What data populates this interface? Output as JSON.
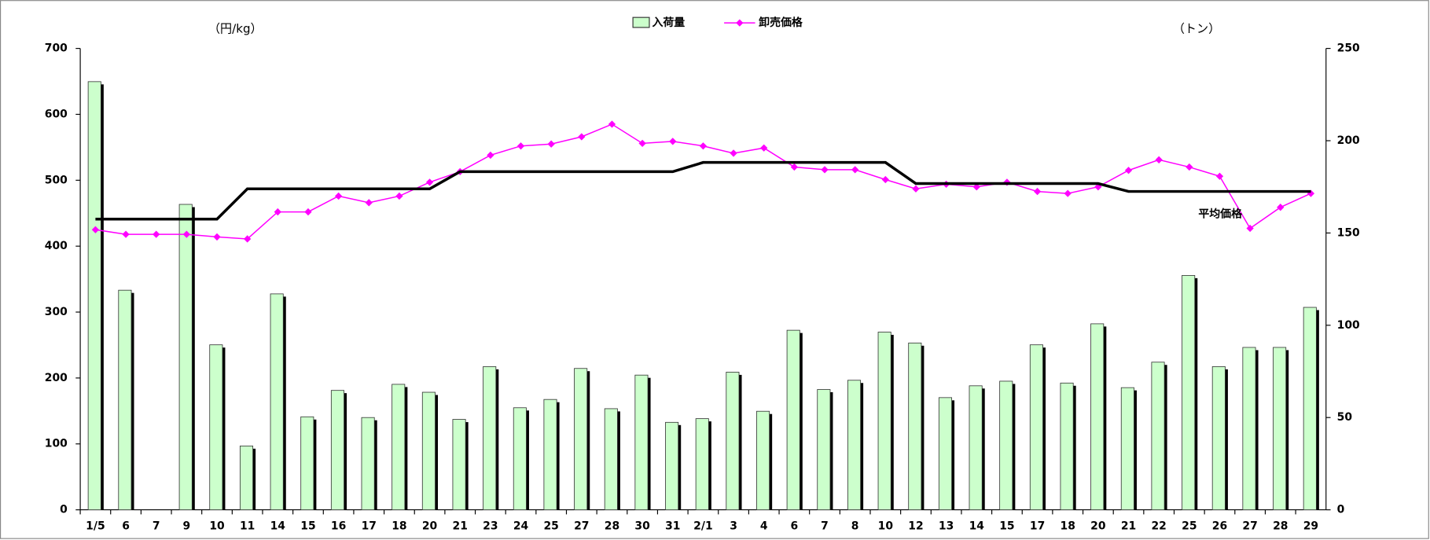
{
  "chart_data": {
    "type": "bar_line",
    "categories": [
      "1/5",
      "6",
      "7",
      "9",
      "10",
      "11",
      "14",
      "15",
      "16",
      "17",
      "18",
      "20",
      "21",
      "23",
      "24",
      "25",
      "27",
      "28",
      "30",
      "31",
      "2/1",
      "3",
      "4",
      "6",
      "7",
      "8",
      "10",
      "12",
      "13",
      "14",
      "15",
      "17",
      "18",
      "20",
      "21",
      "22",
      "25",
      "26",
      "27",
      "28",
      "29"
    ],
    "y_label": "（円/kg）",
    "y2_label": "（トン）",
    "ylim": [
      0,
      700
    ],
    "yticks": [
      0,
      100,
      200,
      300,
      400,
      500,
      600,
      700
    ],
    "y2lim": [
      0,
      250
    ],
    "y2ticks": [
      0,
      50,
      100,
      150,
      200,
      250
    ],
    "series": [
      {
        "name": "入荷量",
        "type": "bar",
        "axis": "y2",
        "color": "#ccffcc",
        "values": [
          232,
          119,
          null,
          165.5,
          89.4,
          34.6,
          117,
          50.4,
          64.7,
          50,
          68,
          63.7,
          49,
          77.6,
          55.3,
          59.8,
          76.6,
          54.8,
          73,
          47.4,
          49.4,
          74.6,
          53.4,
          97.3,
          65.2,
          70.2,
          96.3,
          90.4,
          60.8,
          67.2,
          69.7,
          89.4,
          68.7,
          100.8,
          66.2,
          80,
          127,
          77.6,
          88,
          88,
          109.7
        ]
      },
      {
        "name": "卸売価格",
        "type": "line",
        "axis": "y",
        "color": "#ff00ff",
        "values": [
          425,
          418,
          418,
          418,
          414,
          411,
          452,
          452,
          476,
          466,
          476,
          497,
          513,
          538,
          552,
          555,
          566,
          585,
          556,
          559,
          552,
          541,
          549,
          520,
          516,
          516,
          501,
          487,
          494,
          490,
          497,
          483,
          480,
          490,
          515,
          531,
          520,
          506,
          427,
          459,
          480
        ]
      },
      {
        "name": "平均価格",
        "type": "line",
        "axis": "y",
        "color": "#000000",
        "in_legend": false,
        "values": [
          441,
          441,
          441,
          441,
          441,
          487,
          487,
          487,
          487,
          487,
          487,
          487,
          513,
          513,
          513,
          513,
          513,
          513,
          513,
          513,
          527,
          527,
          527,
          527,
          527,
          527,
          527,
          495,
          495,
          495,
          495,
          495,
          495,
          495,
          483,
          483,
          483,
          483,
          483,
          483,
          483
        ]
      }
    ]
  }
}
